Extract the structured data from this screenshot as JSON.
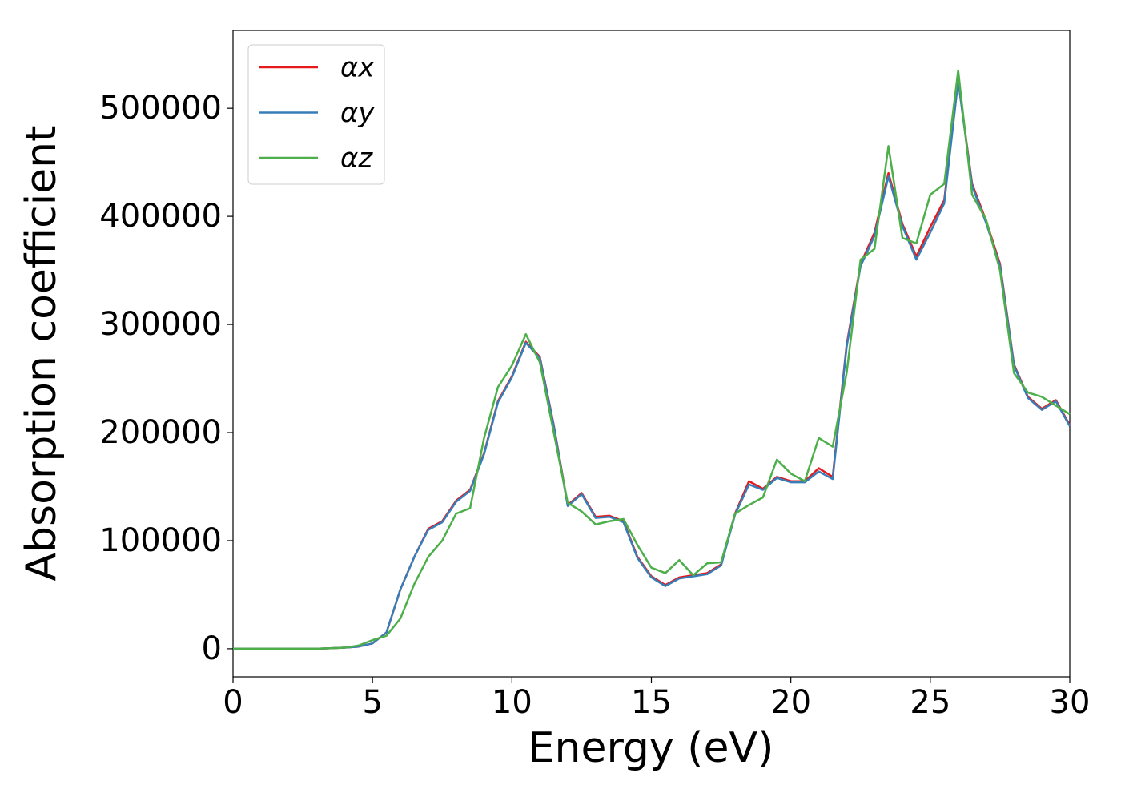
{
  "chart_data": {
    "type": "line",
    "xlabel": "Energy (eV)",
    "ylabel": "Absorption coefficient",
    "x": [
      0,
      0.5,
      1,
      1.5,
      2,
      2.5,
      3,
      3.5,
      4,
      4.5,
      5,
      5.5,
      6,
      6.5,
      7,
      7.5,
      8,
      8.5,
      9,
      9.5,
      10,
      10.5,
      11,
      11.5,
      12,
      12.5,
      13,
      13.5,
      14,
      14.5,
      15,
      15.5,
      16,
      16.5,
      17,
      17.5,
      18,
      18.5,
      19,
      19.5,
      20,
      20.5,
      21,
      21.5,
      22,
      22.5,
      23,
      23.5,
      24,
      24.5,
      25,
      25.5,
      26,
      26.5,
      27,
      27.5,
      28,
      28.5,
      29,
      29.5,
      30
    ],
    "series": [
      {
        "name": "αx",
        "color": "#e41a1c",
        "values": [
          0,
          0,
          0,
          0,
          0,
          0,
          0,
          500,
          1000,
          2000,
          5000,
          15000,
          55000,
          85000,
          111000,
          118000,
          137000,
          147000,
          181000,
          229000,
          252000,
          284000,
          270000,
          207000,
          133000,
          144000,
          122000,
          123000,
          118000,
          85000,
          67000,
          59000,
          66000,
          68000,
          70000,
          78000,
          125000,
          155000,
          148000,
          159000,
          155000,
          155000,
          167000,
          159000,
          281000,
          356000,
          385000,
          440000,
          393000,
          363000,
          390000,
          415000,
          526000,
          430000,
          396000,
          356000,
          263000,
          233000,
          222000,
          230000,
          207000
        ]
      },
      {
        "name": "αy",
        "color": "#377eb8",
        "values": [
          0,
          0,
          0,
          0,
          0,
          0,
          0,
          500,
          1000,
          2000,
          5000,
          15000,
          55000,
          85000,
          110000,
          117000,
          136000,
          146000,
          180000,
          228000,
          251000,
          283000,
          269000,
          206000,
          132000,
          143000,
          121000,
          122000,
          117000,
          84000,
          66000,
          58000,
          65000,
          67000,
          69000,
          77000,
          124000,
          152000,
          147000,
          158000,
          154000,
          154000,
          164000,
          157000,
          279000,
          354000,
          382000,
          437000,
          391000,
          360000,
          385000,
          412000,
          526000,
          428000,
          394000,
          354000,
          262000,
          232000,
          221000,
          229000,
          206000
        ]
      },
      {
        "name": "αz",
        "color": "#4daf4a",
        "values": [
          0,
          0,
          0,
          0,
          0,
          0,
          0,
          500,
          1000,
          3000,
          8000,
          12000,
          28000,
          60000,
          85000,
          100000,
          125000,
          130000,
          195000,
          242000,
          262000,
          291000,
          265000,
          200000,
          135000,
          127000,
          115000,
          118000,
          120000,
          96000,
          75000,
          70000,
          82000,
          68000,
          79000,
          80000,
          125000,
          133000,
          140000,
          175000,
          162000,
          155000,
          195000,
          187000,
          255000,
          360000,
          370000,
          465000,
          380000,
          375000,
          420000,
          430000,
          535000,
          420000,
          397000,
          350000,
          255000,
          237000,
          233000,
          225000,
          217000
        ]
      }
    ],
    "xlim": [
      0,
      30
    ],
    "xticks": [
      0,
      5,
      10,
      15,
      20,
      25,
      30
    ],
    "ylim": [
      -26000,
      572000
    ],
    "yticks": [
      0,
      100000,
      200000,
      300000,
      400000,
      500000
    ],
    "grid": false,
    "legend": "upper left"
  }
}
